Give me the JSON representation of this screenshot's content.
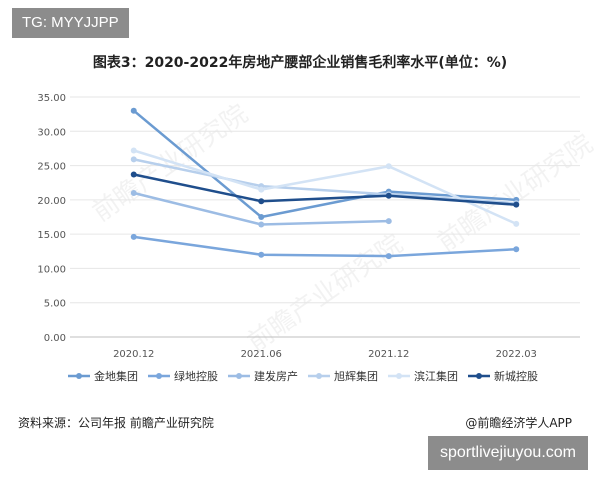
{
  "overlay_top": "TG: MYYJJPP",
  "overlay_bottom": "sportlivejiuyou.com",
  "source_text": "资料来源：公司年报 前瞻产业研究院",
  "app_credit": "@前瞻经济学人APP",
  "watermark_text": "前瞻产业研究院",
  "chart_data": {
    "type": "line",
    "title": "图表3：2020-2022年房地产腰部企业销售毛利率水平(单位：%)",
    "categories": [
      "2020.12",
      "2021.06",
      "2021.12",
      "2022.03"
    ],
    "y_tick_labels": [
      "0.00",
      "5.00",
      "10.00",
      "15.00",
      "20.00",
      "25.00",
      "30.00",
      "35.00"
    ],
    "ylim": [
      0,
      35
    ],
    "grid": "horizontal",
    "legend_position": "bottom",
    "series": [
      {
        "name": "金地集团",
        "color": "#6b9bd1",
        "values": [
          33.0,
          17.5,
          21.2,
          20.0
        ]
      },
      {
        "name": "绿地控股",
        "color": "#7aa6dc",
        "values": [
          14.6,
          12.0,
          11.8,
          12.8
        ]
      },
      {
        "name": "建发房产",
        "color": "#9cbce4",
        "values": [
          21.0,
          16.4,
          16.9,
          null
        ]
      },
      {
        "name": "旭辉集团",
        "color": "#b7cfec",
        "values": [
          25.9,
          22.0,
          20.8,
          19.5
        ]
      },
      {
        "name": "滨江集团",
        "color": "#d3e3f5",
        "values": [
          27.2,
          21.5,
          24.9,
          16.5
        ]
      },
      {
        "name": "新城控股",
        "color": "#1f4e8c",
        "values": [
          23.7,
          19.8,
          20.6,
          19.3
        ]
      }
    ]
  }
}
